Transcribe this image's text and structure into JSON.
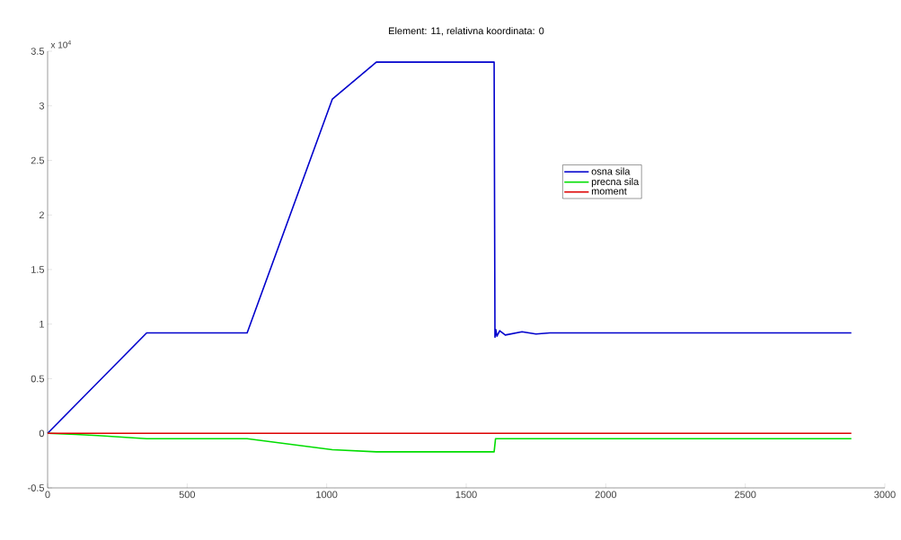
{
  "chart_data": {
    "type": "line",
    "title": "Element: 11, relativna koordinata: 0",
    "annotations": [
      "x 10$^{4}$"
    ],
    "series": [
      {
        "name": "osna sila",
        "color": "#0000cc",
        "x": [
          0,
          355,
          715,
          1020,
          1178,
          1600,
          1603,
          1606,
          1610,
          1620,
          1640,
          1700,
          1750,
          1800,
          1900,
          2880
        ],
        "values": [
          0,
          0.92,
          0.92,
          3.06,
          3.4,
          3.4,
          0.88,
          0.95,
          0.89,
          0.94,
          0.9,
          0.93,
          0.91,
          0.92,
          0.92,
          0.92
        ]
      },
      {
        "name": "precna sila",
        "color": "#00dd00",
        "x": [
          0,
          100,
          180,
          355,
          715,
          1020,
          1178,
          1600,
          1605,
          2880
        ],
        "values": [
          0,
          -0.01,
          -0.02,
          -0.05,
          -0.05,
          -0.15,
          -0.17,
          -0.17,
          -0.05,
          -0.05
        ]
      },
      {
        "name": "moment",
        "color": "#dd0000",
        "x": [
          0,
          2880
        ],
        "values": [
          0,
          0
        ]
      }
    ],
    "xlim": [
      0,
      3000
    ],
    "ylim": [
      -0.5,
      3.5
    ],
    "xticks": [
      0,
      500,
      1000,
      1500,
      2000,
      2500,
      3000
    ],
    "yticks": [
      -0.5,
      0,
      0.5,
      1,
      1.5,
      2,
      2.5,
      3,
      3.5
    ],
    "legend": "right",
    "grid": false
  }
}
